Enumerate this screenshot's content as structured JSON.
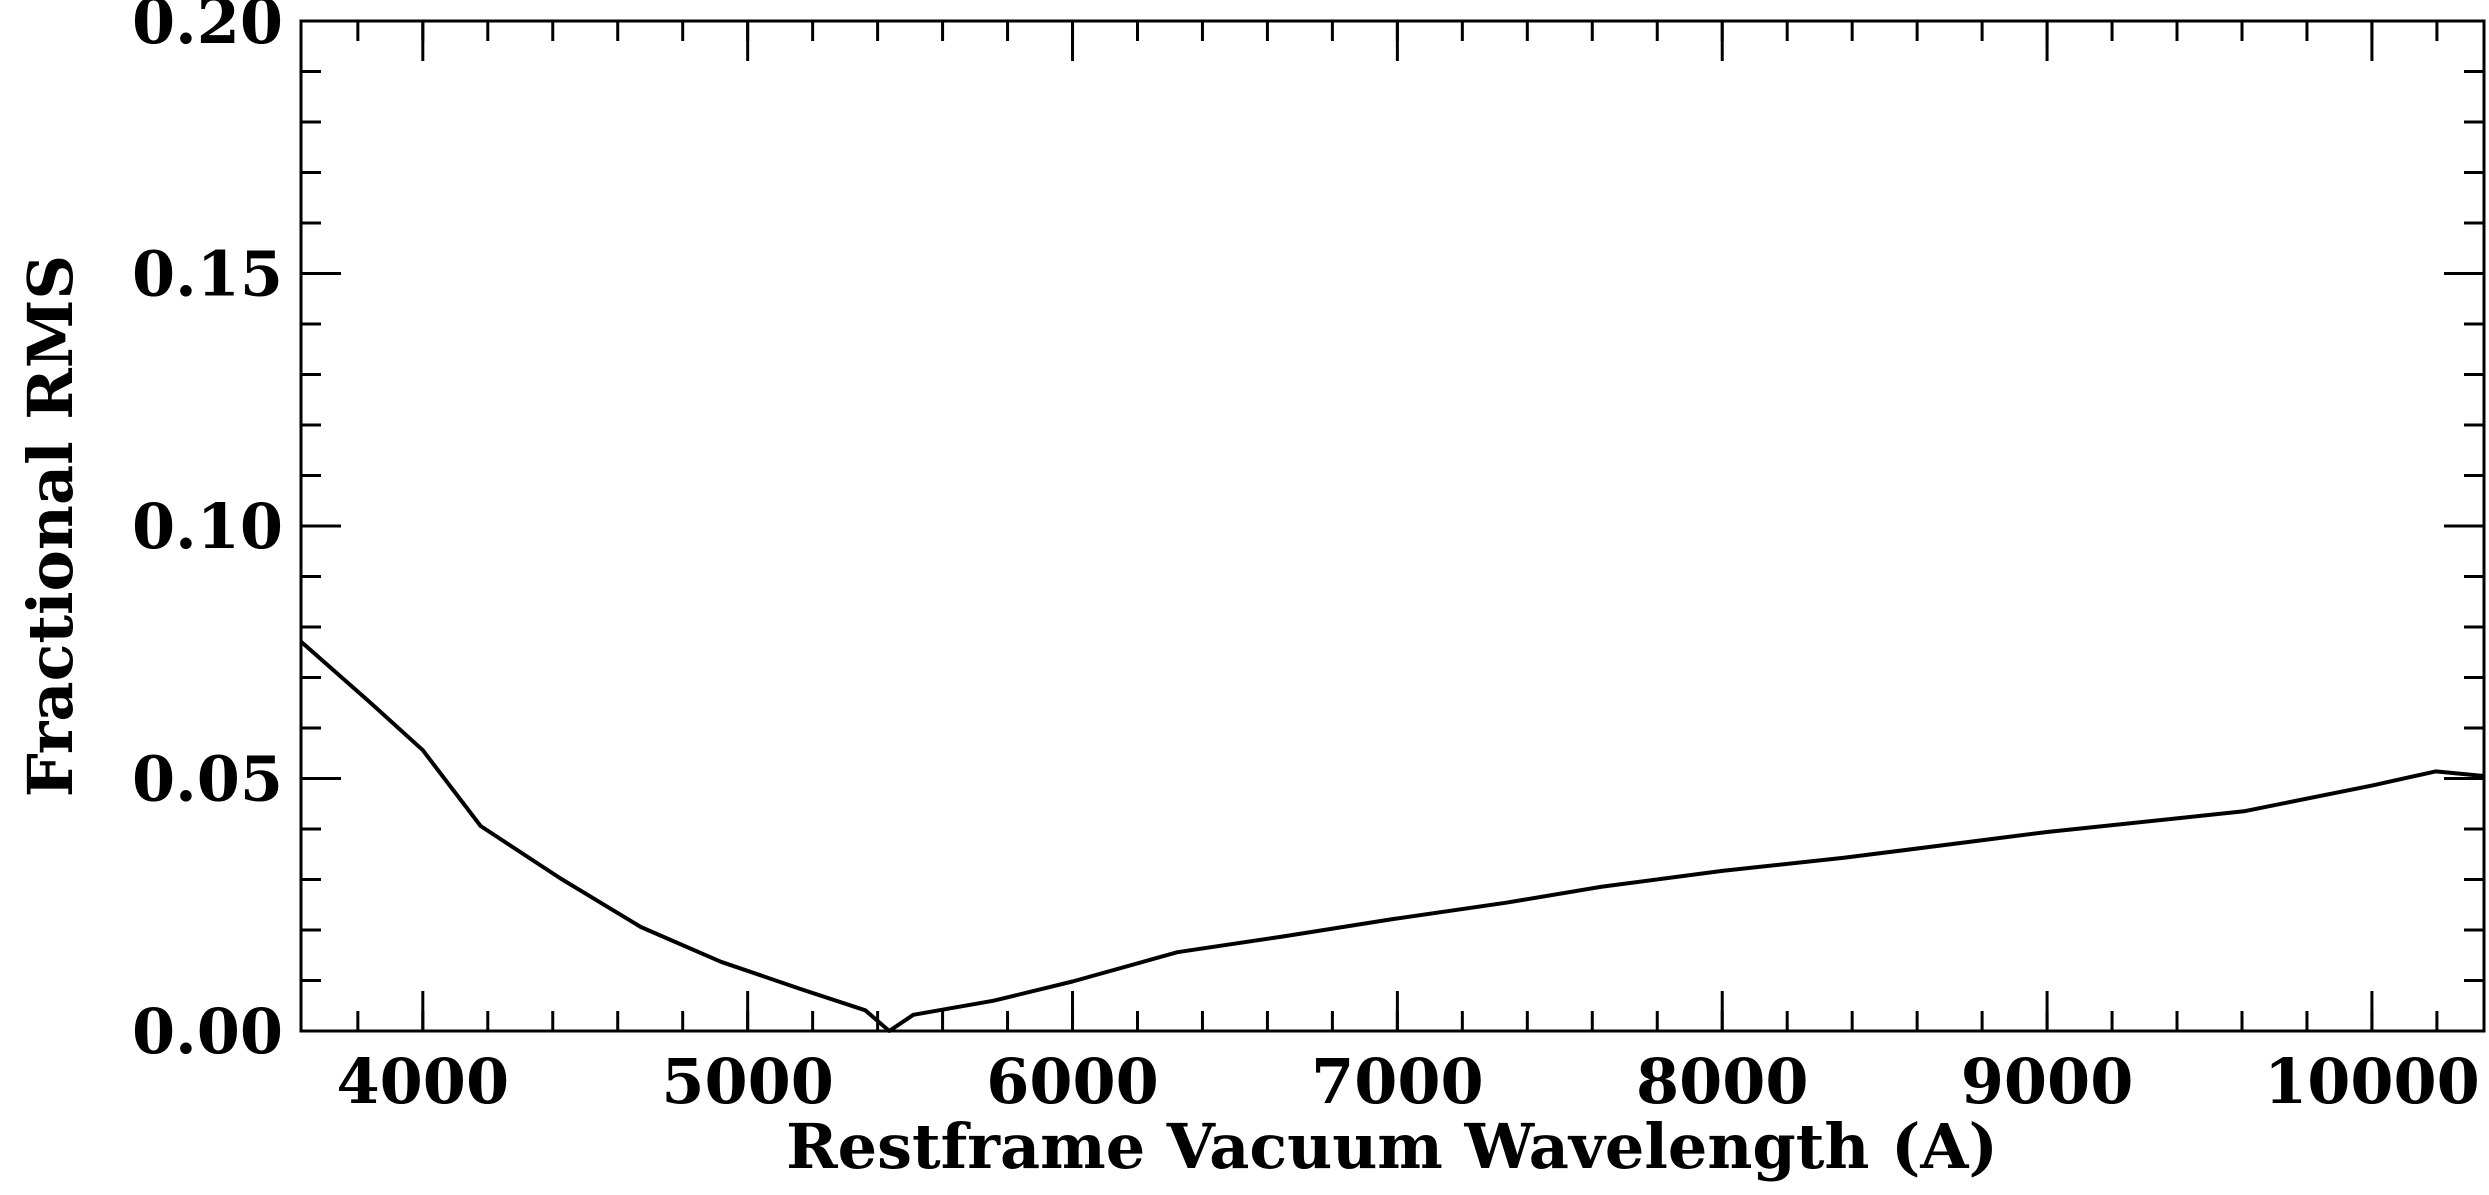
{
  "chart_data": {
    "type": "line",
    "x_label": "Restframe Vacuum Wavelength (A)",
    "y_label": "Fractional RMS",
    "xlim": [
      3625,
      10345
    ],
    "ylim": [
      0,
      0.2
    ],
    "xticks": [
      4000,
      5000,
      6000,
      7000,
      8000,
      9000,
      10000
    ],
    "yticks": [
      {
        "value": 0,
        "label": "0.00"
      },
      0.05,
      {
        "value": 0.1,
        "label": "0.10"
      },
      0.15,
      {
        "value": 0.2,
        "label": "0.20"
      }
    ],
    "series": [
      {
        "color": "#000000",
        "x": [
          3625,
          3832,
          4000,
          4178,
          4424,
          4671,
          4918,
          5164,
          5362,
          5436,
          5510,
          5757,
          6000,
          6323,
          6645,
          6990,
          7335,
          7631,
          8000,
          8375,
          9000,
          9606,
          10000,
          10196,
          10345
        ],
        "values": [
          0.0771,
          0.0654,
          0.0556,
          0.0406,
          0.0302,
          0.0206,
          0.0137,
          0.0083,
          0.0041,
          0,
          0.0032,
          0.006,
          0.0098,
          0.0156,
          0.0187,
          0.0222,
          0.0254,
          0.0286,
          0.0317,
          0.0343,
          0.0394,
          0.0435,
          0.0486,
          0.0514,
          0.0505
        ]
      }
    ]
  }
}
